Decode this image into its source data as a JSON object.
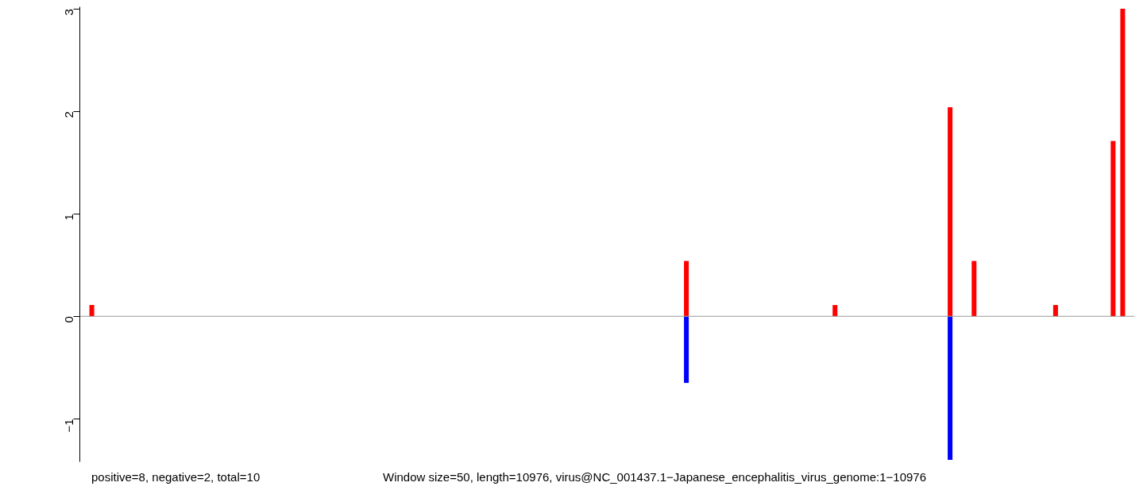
{
  "chart_data": {
    "type": "bar",
    "categories": [
      null,
      null,
      null,
      null,
      null,
      null,
      null,
      null,
      null,
      null,
      null,
      null,
      null,
      null,
      null,
      null,
      null,
      null,
      null,
      null,
      null,
      null,
      null,
      null,
      null,
      null,
      null,
      null,
      null,
      null,
      null,
      null,
      null,
      null,
      null,
      null,
      null,
      null,
      null,
      null,
      null,
      null,
      null,
      null,
      null,
      null,
      null,
      null,
      null,
      null,
      null,
      null,
      null,
      null,
      null,
      null,
      null,
      null,
      null,
      null,
      null,
      null,
      null,
      null,
      null,
      null,
      null,
      null,
      null,
      null,
      null,
      null,
      null,
      null,
      null,
      null,
      null,
      null,
      null,
      null,
      null,
      null,
      null,
      null,
      null,
      null,
      null,
      null,
      null,
      null,
      null,
      null,
      null,
      null,
      null,
      null,
      null,
      null,
      null,
      null,
      null,
      null,
      null,
      null,
      null,
      null,
      null,
      null,
      null,
      null,
      null,
      null,
      null,
      null,
      null,
      null,
      null,
      null,
      null,
      null,
      null,
      null,
      null,
      null,
      null,
      null,
      null,
      null,
      null,
      null,
      null,
      null,
      null,
      null,
      null,
      null,
      null,
      null,
      null,
      null,
      null,
      null,
      null,
      null,
      null,
      null,
      null,
      null,
      null,
      null,
      null,
      null,
      null,
      null,
      null,
      null,
      null,
      null,
      null,
      null,
      null,
      null,
      null,
      null,
      null,
      null,
      null,
      null,
      null,
      null,
      null,
      null,
      null,
      null,
      null,
      null,
      null,
      null,
      null,
      null,
      null,
      null,
      null,
      null,
      null,
      null,
      null,
      null,
      null,
      null,
      null,
      null,
      null,
      null,
      null,
      null,
      null,
      null,
      null,
      null,
      null,
      null,
      null,
      null,
      null,
      null,
      null,
      null,
      null,
      null,
      null,
      null,
      null,
      null,
      null,
      null,
      null,
      null,
      null,
      null
    ],
    "series": [
      {
        "color": "#ff0000",
        "values": [
          null,
          null,
          0.11,
          null,
          null,
          null,
          null,
          null,
          null,
          null,
          null,
          null,
          null,
          null,
          null,
          null,
          null,
          null,
          null,
          null,
          null,
          null,
          null,
          null,
          null,
          null,
          null,
          null,
          null,
          null,
          null,
          null,
          null,
          null,
          null,
          null,
          null,
          null,
          null,
          null,
          null,
          null,
          null,
          null,
          null,
          null,
          null,
          null,
          null,
          null,
          null,
          null,
          null,
          null,
          null,
          null,
          null,
          null,
          null,
          null,
          null,
          null,
          null,
          null,
          null,
          null,
          null,
          null,
          null,
          null,
          null,
          null,
          null,
          null,
          null,
          null,
          null,
          null,
          null,
          null,
          null,
          null,
          null,
          null,
          null,
          null,
          null,
          null,
          null,
          null,
          null,
          null,
          null,
          null,
          null,
          null,
          null,
          null,
          null,
          null,
          null,
          null,
          null,
          null,
          null,
          null,
          null,
          null,
          null,
          null,
          null,
          null,
          null,
          null,
          null,
          null,
          null,
          null,
          null,
          null,
          null,
          null,
          null,
          null,
          null,
          null,
          0.54,
          null,
          null,
          null,
          null,
          null,
          null,
          null,
          null,
          null,
          null,
          null,
          null,
          null,
          null,
          null,
          null,
          null,
          null,
          null,
          null,
          null,
          null,
          null,
          null,
          null,
          null,
          null,
          null,
          null,
          null,
          0.11,
          null,
          null,
          null,
          null,
          null,
          null,
          null,
          null,
          null,
          null,
          null,
          null,
          null,
          null,
          null,
          null,
          null,
          null,
          null,
          null,
          null,
          null,
          null,
          2.04,
          null,
          null,
          null,
          null,
          0.54,
          null,
          null,
          null,
          null,
          null,
          null,
          null,
          null,
          null,
          null,
          null,
          null,
          null,
          null,
          null,
          null,
          0.11,
          null,
          null,
          null,
          null,
          null,
          null,
          null,
          null,
          null,
          null,
          null,
          1.71,
          null,
          3.0,
          null,
          null
        ]
      },
      {
        "color": "#0000ff",
        "values": [
          null,
          null,
          null,
          null,
          null,
          null,
          null,
          null,
          null,
          null,
          null,
          null,
          null,
          null,
          null,
          null,
          null,
          null,
          null,
          null,
          null,
          null,
          null,
          null,
          null,
          null,
          null,
          null,
          null,
          null,
          null,
          null,
          null,
          null,
          null,
          null,
          null,
          null,
          null,
          null,
          null,
          null,
          null,
          null,
          null,
          null,
          null,
          null,
          null,
          null,
          null,
          null,
          null,
          null,
          null,
          null,
          null,
          null,
          null,
          null,
          null,
          null,
          null,
          null,
          null,
          null,
          null,
          null,
          null,
          null,
          null,
          null,
          null,
          null,
          null,
          null,
          null,
          null,
          null,
          null,
          null,
          null,
          null,
          null,
          null,
          null,
          null,
          null,
          null,
          null,
          null,
          null,
          null,
          null,
          null,
          null,
          null,
          null,
          null,
          null,
          null,
          null,
          null,
          null,
          null,
          null,
          null,
          null,
          null,
          null,
          null,
          null,
          null,
          null,
          null,
          null,
          null,
          null,
          null,
          null,
          null,
          null,
          null,
          null,
          null,
          null,
          -0.65,
          null,
          null,
          null,
          null,
          null,
          null,
          null,
          null,
          null,
          null,
          null,
          null,
          null,
          null,
          null,
          null,
          null,
          null,
          null,
          null,
          null,
          null,
          null,
          null,
          null,
          null,
          null,
          null,
          null,
          null,
          null,
          null,
          null,
          null,
          null,
          null,
          null,
          null,
          null,
          null,
          null,
          null,
          null,
          null,
          null,
          null,
          null,
          null,
          null,
          null,
          null,
          null,
          null,
          null,
          -1.4,
          null,
          null,
          null,
          null,
          null,
          null,
          null,
          null,
          null,
          null,
          null,
          null,
          null,
          null,
          null,
          null,
          null,
          null,
          null,
          null,
          null,
          null,
          null,
          null,
          null,
          null,
          null,
          null,
          null,
          null,
          null,
          null,
          null,
          null,
          null,
          null,
          null,
          null
        ]
      }
    ],
    "ylim": [
      -1.42,
      3.02
    ],
    "yticks": [
      {
        "value": -1,
        "label": "−1"
      },
      0,
      1,
      2,
      3
    ],
    "tick_labels": "y",
    "ref_lines": [
      {
        "axis": "y",
        "value": 0,
        "color": "#999999"
      }
    ],
    "annotations": [
      "positive=8, negative=2, total=10",
      "Window size=50, length=10976, virus@NC_001437.1−Japanese_encephalitis_virus_genome:1−10976"
    ]
  }
}
